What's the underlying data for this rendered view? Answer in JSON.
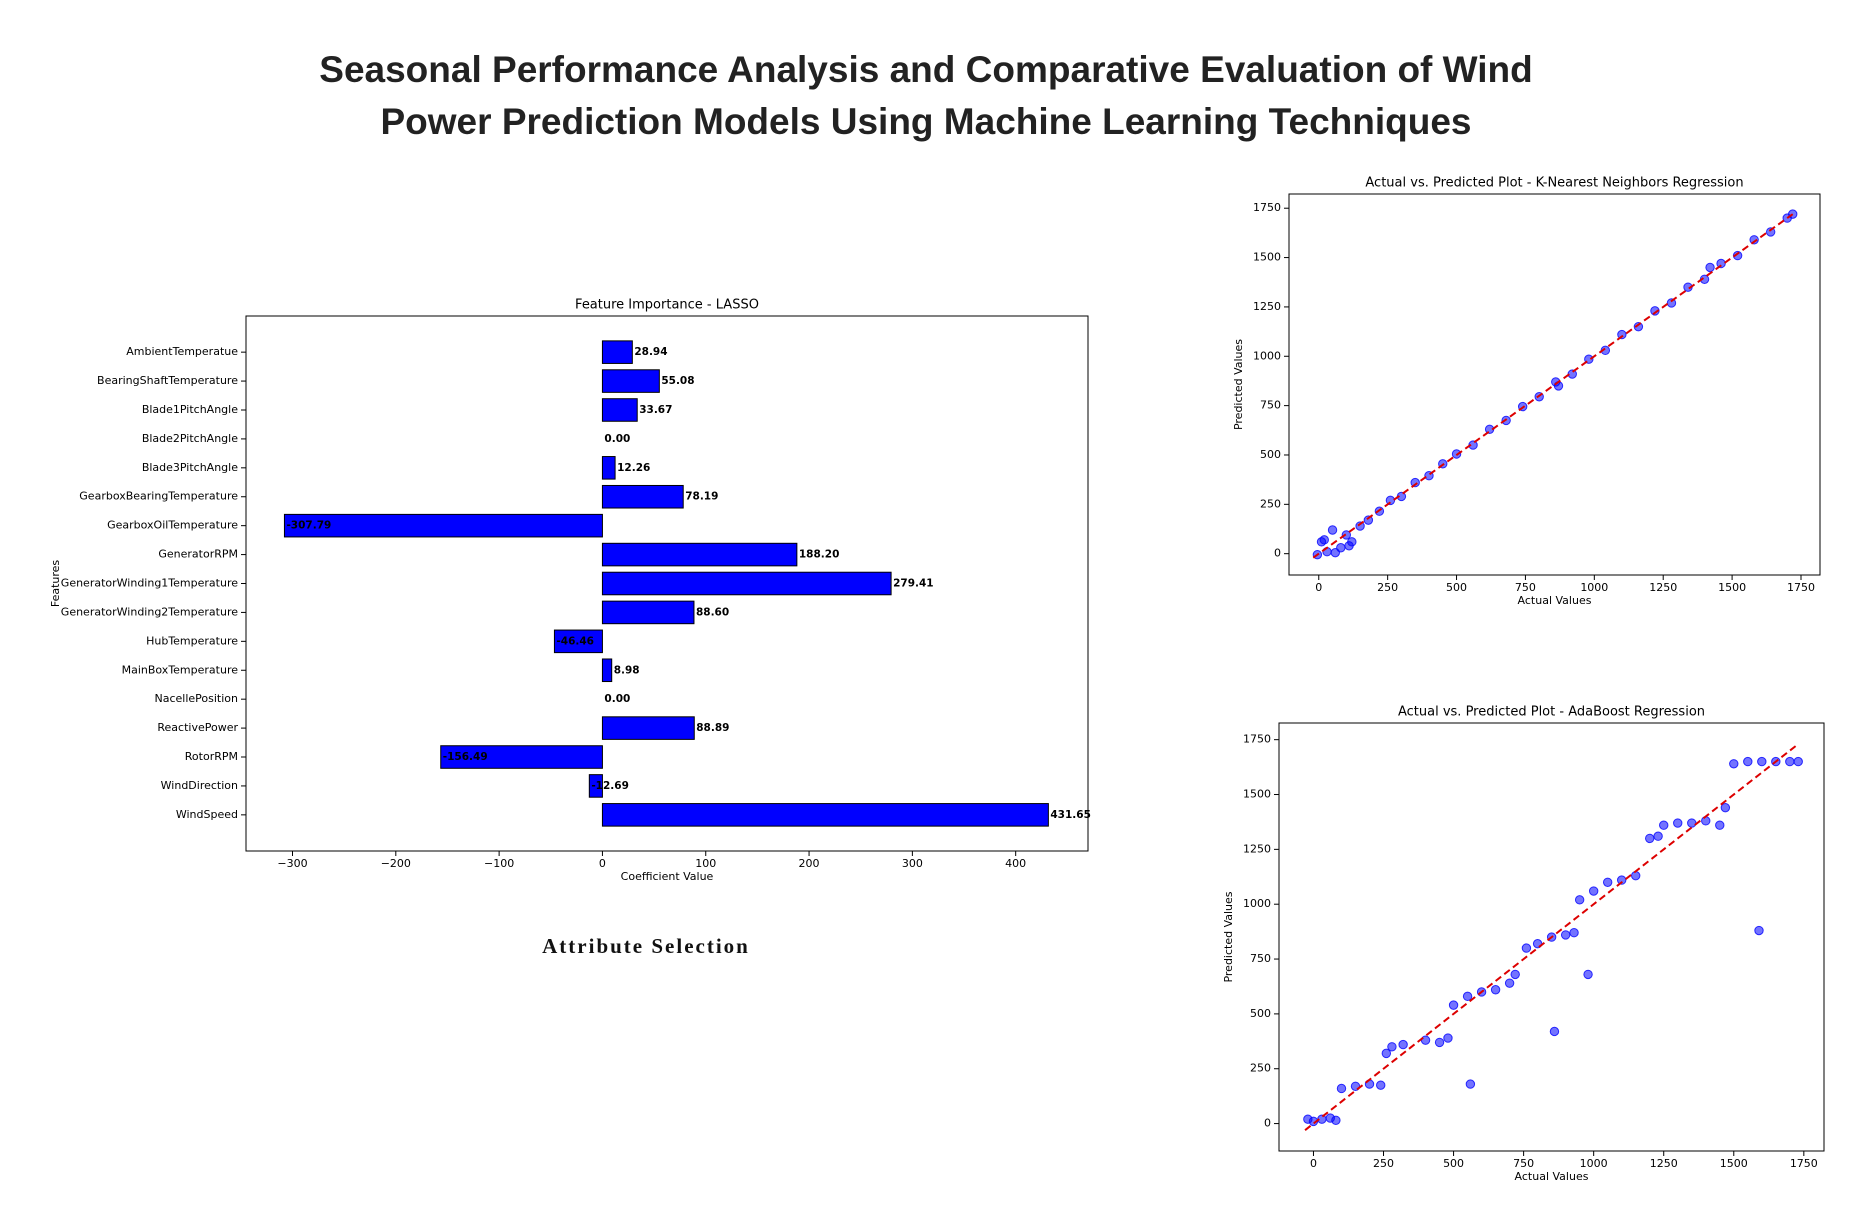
{
  "title": "Seasonal Performance Analysis and Comparative Evaluation of Wind Power Prediction Models Using Machine Learning Techniques",
  "caption": "Attribute Selection",
  "chart_data": [
    {
      "type": "bar",
      "orientation": "horizontal",
      "title": "Feature Importance - LASSO",
      "x_label": "Coefficient Value",
      "y_label": "Features",
      "categories": [
        "AmbientTemperatue",
        "BearingShaftTemperature",
        "Blade1PitchAngle",
        "Blade2PitchAngle",
        "Blade3PitchAngle",
        "GearboxBearingTemperature",
        "GearboxOilTemperature",
        "GeneratorRPM",
        "GeneratorWinding1Temperature",
        "GeneratorWinding2Temperature",
        "HubTemperature",
        "MainBoxTemperature",
        "NacellePosition",
        "ReactivePower",
        "RotorRPM",
        "WindDirection",
        "WindSpeed"
      ],
      "values": [
        28.94,
        55.08,
        33.67,
        0.0,
        12.26,
        78.19,
        -307.79,
        188.2,
        279.41,
        88.6,
        -46.46,
        8.98,
        0.0,
        88.89,
        -156.49,
        -12.69,
        431.65
      ],
      "value_labels": [
        "28.94",
        "55.08",
        "33.67",
        "0.00",
        "12.26",
        "78.19",
        "-307.79",
        "188.20",
        "279.41",
        "88.60",
        "-46.46",
        "8.98",
        "0.00",
        "88.89",
        "-156.49",
        "-12.69",
        "431.65"
      ],
      "color": "#0000ff",
      "edge_color": "#000000",
      "xlim": [
        -345,
        470
      ],
      "xticks": [
        {
          "value": -300,
          "label": "−300"
        },
        {
          "value": -200,
          "label": "−200"
        },
        {
          "value": -100,
          "label": "−100"
        },
        0,
        100,
        200,
        300,
        400
      ]
    },
    {
      "type": "scatter",
      "title": "Actual vs. Predicted Plot - K-Nearest Neighbors Regression",
      "x_label": "Actual Values",
      "y_label": "Predicted Values",
      "color": "#0000ff",
      "x": [
        -5,
        10,
        30,
        50,
        80,
        100,
        120,
        150,
        180,
        220,
        260,
        300,
        350,
        400,
        450,
        500,
        560,
        620,
        680,
        740,
        800,
        860,
        920,
        980,
        1040,
        1100,
        1160,
        1220,
        1280,
        1340,
        1400,
        1460,
        1520,
        1580,
        1640,
        1700,
        1720,
        20,
        60,
        110,
        870,
        1420
      ],
      "values": [
        -5,
        60,
        10,
        120,
        30,
        95,
        60,
        140,
        170,
        215,
        270,
        290,
        360,
        395,
        455,
        505,
        550,
        630,
        675,
        745,
        795,
        870,
        910,
        985,
        1030,
        1110,
        1150,
        1230,
        1270,
        1350,
        1390,
        1470,
        1510,
        1590,
        1630,
        1700,
        1720,
        70,
        5,
        40,
        850,
        1450
      ],
      "fit_line": {
        "color": "#dd0000",
        "x": [
          -20,
          1720
        ],
        "y": [
          -20,
          1720
        ]
      },
      "xlim": [
        -108,
        1819
      ],
      "ylim": [
        -108,
        1822
      ],
      "xticks": [
        0,
        250,
        500,
        750,
        1000,
        1250,
        1500,
        1750
      ],
      "yticks": [
        0,
        250,
        500,
        750,
        1000,
        1250,
        1500,
        1750
      ]
    },
    {
      "type": "scatter",
      "title": "Actual vs. Predicted Plot - AdaBoost Regression",
      "x_label": "Actual Values",
      "y_label": "Predicted Values",
      "color": "#0000ff",
      "x": [
        -20,
        0,
        30,
        60,
        80,
        100,
        150,
        200,
        240,
        260,
        280,
        320,
        400,
        450,
        480,
        500,
        550,
        600,
        650,
        700,
        720,
        760,
        800,
        850,
        900,
        930,
        950,
        1000,
        1050,
        1100,
        1150,
        1200,
        1230,
        1250,
        1300,
        1350,
        1400,
        1450,
        1500,
        1550,
        1600,
        1650,
        1700,
        1730,
        560,
        860,
        980,
        1590,
        1470
      ],
      "values": [
        20,
        10,
        20,
        25,
        15,
        160,
        170,
        180,
        175,
        320,
        350,
        360,
        380,
        370,
        390,
        540,
        580,
        600,
        610,
        640,
        680,
        800,
        820,
        850,
        860,
        870,
        1020,
        1060,
        1100,
        1110,
        1130,
        1300,
        1310,
        1360,
        1370,
        1370,
        1380,
        1360,
        1640,
        1650,
        1650,
        1650,
        1650,
        1650,
        180,
        420,
        680,
        880,
        1440
      ],
      "fit_line": {
        "color": "#dd0000",
        "x": [
          -30,
          1730
        ],
        "y": [
          -30,
          1730
        ]
      },
      "xlim": [
        -123,
        1822
      ],
      "ylim": [
        -125,
        1826
      ],
      "xticks": [
        0,
        250,
        500,
        750,
        1000,
        1250,
        1500,
        1750
      ],
      "yticks": [
        0,
        250,
        500,
        750,
        1000,
        1250,
        1500,
        1750
      ]
    }
  ]
}
